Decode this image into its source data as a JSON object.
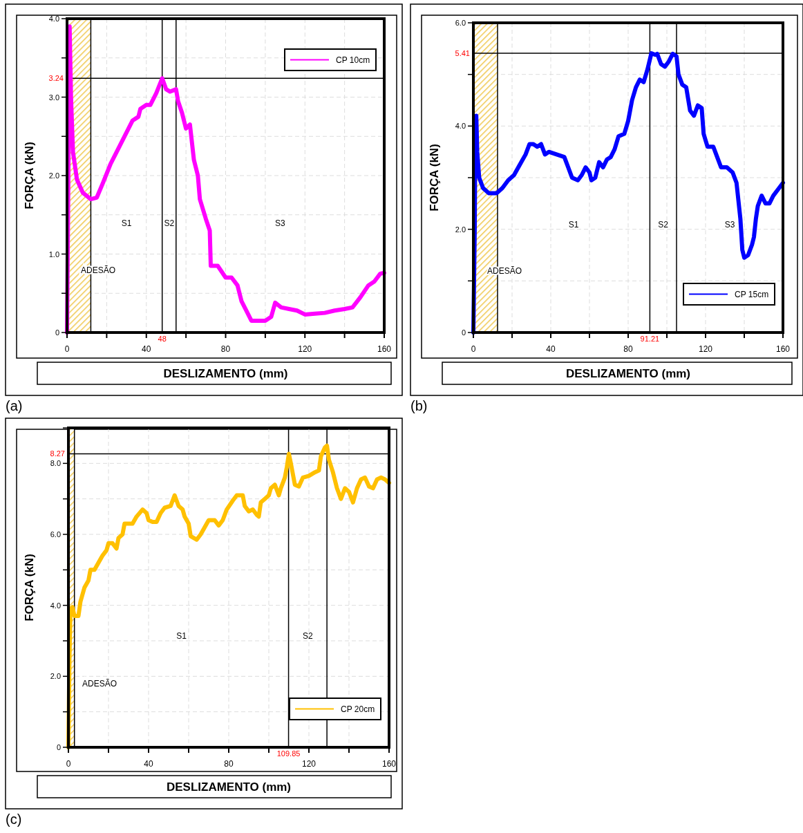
{
  "chart_data": [
    {
      "type": "line",
      "xlabel": "DESLIZAMENTO (mm)",
      "ylabel": "FORÇA (kN)",
      "annotations": [
        "(a)",
        "S1",
        "S2",
        "S3"
      ],
      "xlim": [
        0,
        160
      ],
      "ylim": [
        0,
        4
      ],
      "xticks": [
        0,
        {
          "value": 20,
          "label": null
        },
        40,
        {
          "value": 60,
          "label": null
        },
        80,
        {
          "value": 100,
          "label": null
        },
        120,
        {
          "value": 140,
          "label": null
        },
        160
      ],
      "yticks": [
        {
          "value": 0,
          "label": "0"
        },
        {
          "value": 0.5,
          "label": null
        },
        {
          "value": 1,
          "label": "1.0"
        },
        {
          "value": 1.5,
          "label": null
        },
        {
          "value": 2,
          "label": "2.0"
        },
        {
          "value": 2.5,
          "label": null
        },
        {
          "value": 3,
          "label": "3.0"
        },
        {
          "value": 3.5,
          "label": null
        },
        {
          "value": 4,
          "label": "4.0"
        }
      ],
      "grid": true,
      "legend": "top right",
      "bands": [
        {
          "axis": "x",
          "from": 0,
          "to": 12,
          "label": "ADESÃO",
          "color": "#f0c850"
        }
      ],
      "ref_lines": [
        {
          "axis": "x",
          "value": 12,
          "label": null
        },
        {
          "axis": "x",
          "value": 48,
          "label": "48"
        },
        {
          "axis": "x",
          "value": 55,
          "label": null
        },
        {
          "axis": "y",
          "value": 3.24,
          "label": "3.24"
        }
      ],
      "series": [
        {
          "name": "CP 10cm",
          "color": "#ff00ff",
          "x": [
            0,
            0.5,
            1,
            1.3,
            2,
            3,
            5,
            8,
            12,
            15,
            18,
            22,
            27,
            30,
            33,
            36,
            37,
            40,
            42,
            45,
            48,
            50,
            52,
            55,
            56,
            58,
            60,
            62,
            64,
            66,
            67,
            70,
            72,
            72.5,
            76,
            80,
            83,
            86,
            88,
            90,
            93,
            100,
            103,
            105,
            108,
            112,
            116,
            120,
            125,
            130,
            135,
            140,
            144,
            148,
            152,
            155,
            158,
            160
          ],
          "values": [
            0,
            1.5,
            3.0,
            3.9,
            3.0,
            2.3,
            1.95,
            1.78,
            1.7,
            1.72,
            1.9,
            2.15,
            2.4,
            2.55,
            2.7,
            2.75,
            2.85,
            2.9,
            2.9,
            3.05,
            3.24,
            3.1,
            3.07,
            3.1,
            2.95,
            2.8,
            2.6,
            2.65,
            2.2,
            2.0,
            1.7,
            1.45,
            1.3,
            0.85,
            0.85,
            0.7,
            0.7,
            0.6,
            0.4,
            0.3,
            0.15,
            0.15,
            0.2,
            0.38,
            0.32,
            0.3,
            0.28,
            0.23,
            0.24,
            0.25,
            0.28,
            0.3,
            0.32,
            0.45,
            0.6,
            0.65,
            0.75,
            0.76
          ]
        }
      ]
    },
    {
      "type": "line",
      "xlabel": "DESLIZAMENTO (mm)",
      "ylabel": "FORÇA (kN)",
      "annotations": [
        "(b)",
        "S1",
        "S2",
        "S3"
      ],
      "xlim": [
        0,
        160
      ],
      "ylim": [
        0,
        6
      ],
      "xticks": [
        0,
        {
          "value": 20,
          "label": null
        },
        40,
        {
          "value": 60,
          "label": null
        },
        80,
        {
          "value": 100,
          "label": null
        },
        120,
        {
          "value": 140,
          "label": null
        },
        160
      ],
      "yticks": [
        {
          "value": 0,
          "label": "0"
        },
        {
          "value": 1,
          "label": null
        },
        {
          "value": 2,
          "label": "2.0"
        },
        {
          "value": 3,
          "label": null
        },
        {
          "value": 4,
          "label": "4.0"
        },
        {
          "value": 5,
          "label": null
        },
        {
          "value": 6,
          "label": "6.0"
        }
      ],
      "grid": true,
      "legend": "bottom right",
      "bands": [
        {
          "axis": "x",
          "from": 0,
          "to": 12.5,
          "label": "ADESÃO",
          "color": "#f0c850"
        }
      ],
      "ref_lines": [
        {
          "axis": "x",
          "value": 12.5,
          "label": null
        },
        {
          "axis": "x",
          "value": 91.21,
          "label": "91.21"
        },
        {
          "axis": "x",
          "value": 105,
          "label": null
        },
        {
          "axis": "y",
          "value": 5.41,
          "label": "5.41"
        }
      ],
      "series": [
        {
          "name": "CP 15cm",
          "color": "#0000ff",
          "x": [
            0,
            0.7,
            1,
            1.5,
            2,
            3,
            5,
            8,
            12,
            15,
            18,
            21,
            24,
            27,
            29,
            31,
            33,
            35,
            37,
            39,
            43,
            47,
            49,
            51,
            54,
            56,
            58,
            60,
            61,
            63,
            65,
            67,
            69,
            71,
            73,
            75,
            78,
            80,
            82,
            84,
            86,
            88,
            90,
            92,
            94,
            95,
            97,
            99,
            101,
            103,
            105,
            106,
            108,
            110,
            112,
            114,
            116,
            118,
            119,
            121,
            124,
            126,
            128,
            131,
            134,
            136,
            138,
            139,
            140,
            142,
            144,
            145,
            146,
            147,
            149,
            151,
            153,
            155,
            158,
            160
          ],
          "values": [
            0,
            2,
            3.9,
            4.2,
            3.5,
            3.0,
            2.8,
            2.7,
            2.7,
            2.8,
            2.95,
            3.05,
            3.25,
            3.45,
            3.65,
            3.65,
            3.6,
            3.65,
            3.45,
            3.5,
            3.45,
            3.4,
            3.2,
            3.0,
            2.95,
            3.05,
            3.2,
            3.1,
            2.95,
            3.0,
            3.3,
            3.2,
            3.35,
            3.4,
            3.55,
            3.8,
            3.85,
            4.1,
            4.5,
            4.75,
            4.9,
            4.85,
            5.1,
            5.41,
            5.38,
            5.4,
            5.2,
            5.15,
            5.25,
            5.4,
            5.35,
            5.0,
            4.8,
            4.75,
            4.3,
            4.2,
            4.4,
            4.35,
            3.85,
            3.6,
            3.6,
            3.4,
            3.2,
            3.2,
            3.1,
            2.9,
            2.2,
            1.6,
            1.45,
            1.5,
            1.7,
            1.85,
            2.2,
            2.45,
            2.65,
            2.5,
            2.5,
            2.65,
            2.8,
            2.9
          ]
        }
      ]
    },
    {
      "type": "line",
      "xlabel": "DESLIZAMENTO (mm)",
      "ylabel": "FORÇA (kN)",
      "annotations": [
        "(c)",
        "S1",
        "S2"
      ],
      "xlim": [
        0,
        160
      ],
      "ylim": [
        0,
        9
      ],
      "xticks": [
        0,
        {
          "value": 20,
          "label": null
        },
        40,
        {
          "value": 60,
          "label": null
        },
        80,
        {
          "value": 100,
          "label": null
        },
        120,
        {
          "value": 140,
          "label": null
        },
        160
      ],
      "yticks": [
        {
          "value": 0,
          "label": "0"
        },
        {
          "value": 1,
          "label": null
        },
        {
          "value": 2,
          "label": "2.0"
        },
        {
          "value": 3,
          "label": null
        },
        {
          "value": 4,
          "label": "4.0"
        },
        {
          "value": 5,
          "label": null
        },
        {
          "value": 6,
          "label": "6.0"
        },
        {
          "value": 7,
          "label": null
        },
        {
          "value": 8,
          "label": "8.0"
        },
        {
          "value": 9,
          "label": null
        }
      ],
      "grid": true,
      "legend": "bottom right",
      "bands": [
        {
          "axis": "x",
          "from": 0,
          "to": 3,
          "label": "ADESÃO",
          "color": "#f0c850"
        }
      ],
      "ref_lines": [
        {
          "axis": "x",
          "value": 3,
          "label": null
        },
        {
          "axis": "x",
          "value": 109.85,
          "label": "109.85"
        },
        {
          "axis": "x",
          "value": 129,
          "label": null
        },
        {
          "axis": "y",
          "value": 8.27,
          "label": "8.27"
        }
      ],
      "series": [
        {
          "name": "CP 20cm",
          "color": "#ffc000",
          "x": [
            0,
            0.5,
            1,
            2,
            3,
            5,
            6,
            8,
            10,
            11,
            13,
            15,
            17,
            19,
            20,
            22,
            24,
            25,
            27,
            28,
            30,
            32,
            34,
            37,
            39,
            40,
            42,
            44,
            46,
            48,
            51,
            53,
            55,
            57,
            58,
            60,
            61,
            64,
            66,
            68,
            70,
            73,
            75,
            77,
            79,
            82,
            84,
            87,
            88,
            90,
            92,
            94,
            95,
            96,
            98,
            100,
            101,
            103,
            105,
            106,
            108,
            109,
            110,
            111,
            112,
            113,
            115,
            117,
            120,
            123,
            125,
            126,
            128,
            129,
            130,
            132,
            134,
            136,
            138,
            140,
            142,
            144,
            146,
            148,
            150,
            152,
            154,
            156,
            158,
            160
          ],
          "values": [
            0,
            2.5,
            3.9,
            3.95,
            3.7,
            3.7,
            4.1,
            4.5,
            4.7,
            5.0,
            5.0,
            5.2,
            5.4,
            5.55,
            5.75,
            5.75,
            5.6,
            5.9,
            6.0,
            6.3,
            6.3,
            6.3,
            6.5,
            6.7,
            6.6,
            6.4,
            6.35,
            6.35,
            6.6,
            6.75,
            6.8,
            7.1,
            6.8,
            6.7,
            6.5,
            6.3,
            5.95,
            5.85,
            6.0,
            6.2,
            6.4,
            6.4,
            6.25,
            6.4,
            6.7,
            6.95,
            7.1,
            7.1,
            6.8,
            6.65,
            6.7,
            6.55,
            6.5,
            6.9,
            7.0,
            7.1,
            7.3,
            7.4,
            7.1,
            7.3,
            7.6,
            7.9,
            8.27,
            8.0,
            7.7,
            7.4,
            7.35,
            7.6,
            7.65,
            7.75,
            7.8,
            8.2,
            8.45,
            8.5,
            8.1,
            7.75,
            7.3,
            7.0,
            7.3,
            7.2,
            6.9,
            7.3,
            7.55,
            7.6,
            7.35,
            7.3,
            7.55,
            7.6,
            7.55,
            7.45
          ]
        }
      ]
    }
  ]
}
